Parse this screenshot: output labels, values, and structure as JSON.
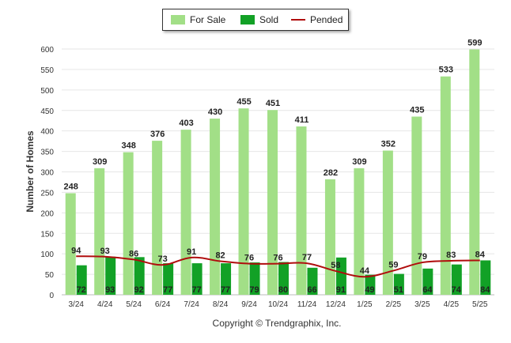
{
  "legend": {
    "for_sale_label": "For Sale",
    "sold_label": "Sold",
    "pended_label": "Pended"
  },
  "copyright": "Copyright © Trendgraphix, Inc.",
  "colors": {
    "for_sale": "#a2df87",
    "sold": "#12a126",
    "pended": "#b00d0d",
    "grid": "#e6e6e6",
    "text": "#222222"
  },
  "chart_data": {
    "type": "bar",
    "title": "",
    "xlabel": "",
    "ylabel": "Number of Homes",
    "ylim": [
      0,
      600
    ],
    "yticks": [
      0,
      50,
      100,
      150,
      200,
      250,
      300,
      350,
      400,
      450,
      500,
      550,
      600
    ],
    "grid": true,
    "legend_position": "top-center",
    "categories": [
      "3/24",
      "4/24",
      "5/24",
      "6/24",
      "7/24",
      "8/24",
      "9/24",
      "10/24",
      "11/24",
      "12/24",
      "1/25",
      "2/25",
      "3/25",
      "4/25",
      "5/25"
    ],
    "series": [
      {
        "name": "For Sale",
        "type": "bar",
        "values": [
          248,
          309,
          348,
          376,
          403,
          430,
          455,
          451,
          411,
          282,
          309,
          352,
          435,
          533,
          599
        ]
      },
      {
        "name": "Sold",
        "type": "bar",
        "values": [
          72,
          93,
          92,
          77,
          77,
          77,
          79,
          80,
          66,
          91,
          49,
          51,
          64,
          74,
          84
        ]
      },
      {
        "name": "Pended",
        "type": "line",
        "values": [
          94,
          93,
          86,
          73,
          91,
          82,
          76,
          76,
          77,
          58,
          44,
          59,
          79,
          83,
          84
        ]
      }
    ]
  }
}
